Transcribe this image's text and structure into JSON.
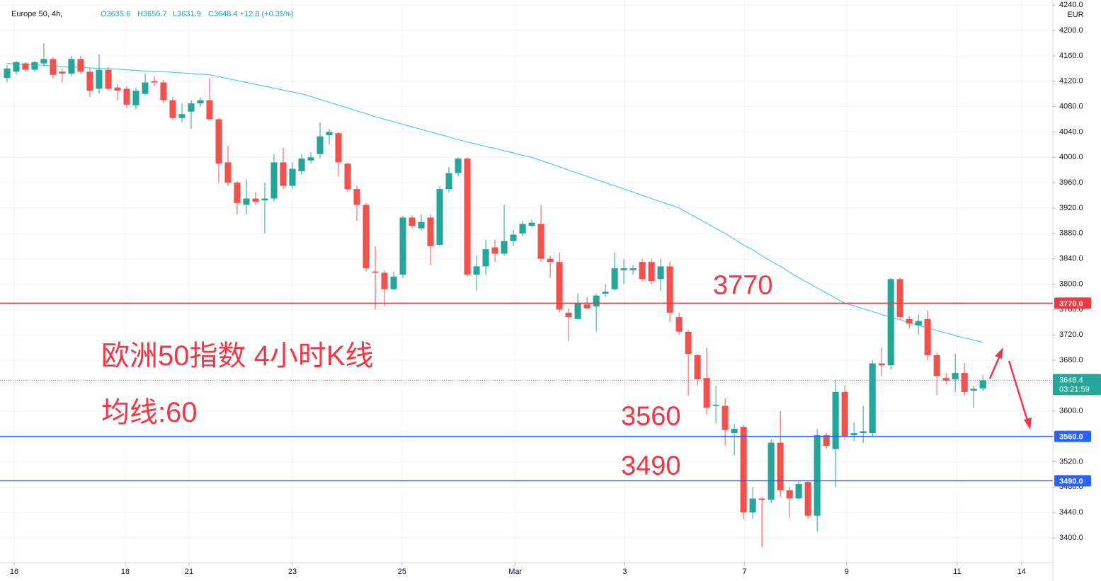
{
  "chart_data": {
    "type": "candlestick",
    "header": {
      "symbol": "Europe 50, 4h,",
      "ohlc": [
        "O3635.6",
        "H3656.7",
        "L3631.9",
        "C3648.4 +12.8 (+0.35%)"
      ]
    },
    "currency": "EUR",
    "annotations": {
      "title": "欧洲50指数 4小时K线",
      "ma_label": "均线:60"
    },
    "up_color": "#26a69a",
    "down_color": "#ef5350",
    "ma_color": "#4dd0e1",
    "open": [
      4125,
      4135,
      4148,
      4138,
      4148,
      4155,
      4135,
      4132,
      4155,
      4135,
      4108,
      4138,
      4110,
      4108,
      4082,
      4100,
      4120,
      4118,
      4090,
      4062,
      4072,
      4085,
      4090,
      4060,
      3992,
      3960,
      3925,
      3935,
      3932,
      3935,
      3992,
      3955,
      3978,
      3995,
      4005,
      4035,
      4038,
      3990,
      3950,
      3925,
      3820,
      3818,
      3792,
      3815,
      3905,
      3888,
      3905,
      3862,
      3950,
      3975,
      3998,
      3815,
      3828,
      3858,
      3848,
      3868,
      3880,
      3892,
      3895,
      3840,
      3835,
      3755,
      3745,
      3768,
      3765,
      3785,
      3792,
      3822,
      3822,
      3835,
      3835,
      3808,
      3828,
      3748,
      3725,
      3688,
      3652,
      3608,
      3608,
      3565,
      3575,
      3440,
      3462,
      3460,
      3550,
      3475,
      3462,
      3488,
      3435,
      3562,
      3540,
      3630,
      3562,
      3565,
      3565,
      3675,
      3672,
      3808,
      3745,
      3735,
      3745,
      3688,
      3652,
      3650,
      3660,
      3632,
      3635.6
    ],
    "high": [
      4145,
      4152,
      4150,
      4152,
      4180,
      4158,
      4140,
      4160,
      4160,
      4140,
      4162,
      4142,
      4115,
      4112,
      4110,
      4132,
      4128,
      4122,
      4095,
      4085,
      4090,
      4095,
      4125,
      4062,
      4018,
      3962,
      3965,
      3945,
      3960,
      4005,
      4015,
      3992,
      4005,
      4008,
      4055,
      4045,
      4040,
      3992,
      3955,
      3928,
      3860,
      3822,
      3820,
      3908,
      3908,
      3910,
      3910,
      3955,
      3985,
      4000,
      4000,
      3845,
      3870,
      3870,
      3925,
      3885,
      3900,
      3902,
      3925,
      3845,
      3850,
      3762,
      3785,
      3780,
      3785,
      3800,
      3850,
      3840,
      3830,
      3840,
      3840,
      3840,
      3835,
      3755,
      3728,
      3690,
      3700,
      3640,
      3620,
      3580,
      3578,
      3480,
      3465,
      3555,
      3600,
      3480,
      3490,
      3490,
      3572,
      3565,
      3650,
      3640,
      3582,
      3608,
      3680,
      3700,
      3810,
      3810,
      3750,
      3752,
      3758,
      3692,
      3660,
      3690,
      3675,
      3640,
      3656.7
    ],
    "low": [
      4118,
      4130,
      4135,
      4135,
      4143,
      4125,
      4118,
      4128,
      4132,
      4095,
      4100,
      4105,
      4090,
      4078,
      4075,
      4098,
      4112,
      4085,
      4058,
      4055,
      4045,
      4080,
      4058,
      3960,
      3955,
      3910,
      3910,
      3925,
      3880,
      3930,
      3950,
      3950,
      3972,
      3990,
      3998,
      4020,
      3970,
      3945,
      3900,
      3820,
      3760,
      3765,
      3790,
      3810,
      3888,
      3885,
      3830,
      3860,
      3945,
      3970,
      3812,
      3790,
      3815,
      3835,
      3845,
      3860,
      3875,
      3890,
      3835,
      3810,
      3755,
      3710,
      3745,
      3760,
      3725,
      3780,
      3790,
      3800,
      3815,
      3805,
      3800,
      3790,
      3740,
      3720,
      3625,
      3640,
      3595,
      3580,
      3545,
      3530,
      3430,
      3430,
      3385,
      3455,
      3465,
      3432,
      3460,
      3430,
      3410,
      3540,
      3480,
      3555,
      3552,
      3550,
      3560,
      3655,
      3665,
      3745,
      3730,
      3720,
      3680,
      3625,
      3642,
      3630,
      3625,
      3605,
      3631.9
    ],
    "close": [
      4140,
      4150,
      4138,
      4150,
      4155,
      4130,
      4132,
      4155,
      4135,
      4105,
      4138,
      4108,
      4105,
      4083,
      4105,
      4118,
      4118,
      4090,
      4062,
      4068,
      4085,
      4090,
      4060,
      3990,
      3960,
      3928,
      3935,
      3930,
      3935,
      3992,
      3955,
      3982,
      3998,
      4000,
      4033,
      4040,
      3992,
      3950,
      3925,
      3825,
      3818,
      3792,
      3812,
      3905,
      3892,
      3898,
      3860,
      3950,
      3975,
      3998,
      3815,
      3828,
      3855,
      3848,
      3868,
      3878,
      3895,
      3897,
      3840,
      3835,
      3760,
      3748,
      3770,
      3762,
      3782,
      3788,
      3825,
      3825,
      3825,
      3808,
      3805,
      3828,
      3755,
      3725,
      3690,
      3650,
      3605,
      3610,
      3570,
      3572,
      3440,
      3462,
      3460,
      3550,
      3475,
      3462,
      3485,
      3435,
      3562,
      3545,
      3630,
      3560,
      3565,
      3568,
      3675,
      3672,
      3808,
      3748,
      3738,
      3742,
      3688,
      3655,
      3648,
      3660,
      3630,
      3635,
      3648.4
    ],
    "ma_values": [
      4148,
      4147,
      4146,
      4146,
      4145,
      4144,
      4143,
      4142,
      4142,
      4141,
      4140,
      4140,
      4139,
      4138,
      4137,
      4136,
      4135,
      4135,
      4134,
      4133,
      4132,
      4131,
      4130,
      4127,
      4124,
      4121,
      4118,
      4115,
      4112,
      4109,
      4106,
      4103,
      4100,
      4096,
      4091,
      4087,
      4082,
      4078,
      4073,
      4069,
      4064,
      4060,
      4056,
      4052,
      4048,
      4044,
      4040,
      4036,
      4032,
      4028,
      4024,
      4021,
      4017,
      4014,
      4010,
      4007,
      4003,
      4000,
      3995,
      3990,
      3985,
      3980,
      3975,
      3970,
      3965,
      3960,
      3955,
      3950,
      3945,
      3940,
      3935,
      3930,
      3925,
      3920,
      3912,
      3904,
      3896,
      3888,
      3880,
      3871,
      3862,
      3854,
      3845,
      3836,
      3828,
      3819,
      3810,
      3802,
      3794,
      3786,
      3778,
      3770,
      3766,
      3761,
      3757,
      3752,
      3748,
      3744,
      3739,
      3735,
      3731,
      3727,
      3723,
      3719,
      3715,
      3712,
      3708
    ],
    "xlim": [
      -0.15,
      113.6
    ],
    "xticks": [
      {
        "value": 0.77,
        "label": "16"
      },
      {
        "value": 12.85,
        "label": "18"
      },
      {
        "value": 19.77,
        "label": "21"
      },
      {
        "value": 31,
        "label": "23"
      },
      {
        "value": 42.9,
        "label": "25"
      },
      {
        "value": 55.2,
        "label": "Mar"
      },
      {
        "value": 67.1,
        "label": "3"
      },
      {
        "value": 80.1,
        "label": "7"
      },
      {
        "value": 91.2,
        "label": "9"
      },
      {
        "value": 103.2,
        "label": "11"
      },
      {
        "value": 110.2,
        "label": "14"
      }
    ],
    "ylim": [
      3361,
      4248
    ],
    "yticks": [
      {
        "value": 3400,
        "label": "3400.0"
      },
      {
        "value": 3440,
        "label": "3440.0"
      },
      {
        "value": 3480,
        "label": "3480.0"
      },
      {
        "value": 3520,
        "label": "3520.0"
      },
      {
        "value": 3560,
        "label": "3560.0"
      },
      {
        "value": 3600,
        "label": "3600.0"
      },
      {
        "value": 3640,
        "label": "3640.0"
      },
      {
        "value": 3680,
        "label": "3680.0"
      },
      {
        "value": 3720,
        "label": "3720.0"
      },
      {
        "value": 3760,
        "label": "3760.0"
      },
      {
        "value": 3800,
        "label": "3800.0"
      },
      {
        "value": 3840,
        "label": "3840.0"
      },
      {
        "value": 3880,
        "label": "3880.0"
      },
      {
        "value": 3920,
        "label": "3920.0"
      },
      {
        "value": 3960,
        "label": "3960.0"
      },
      {
        "value": 4000,
        "label": "4000.0"
      },
      {
        "value": 4040,
        "label": "4040.0"
      },
      {
        "value": 4080,
        "label": "4080.0"
      },
      {
        "value": 4120,
        "label": "4120.0"
      },
      {
        "value": 4160,
        "label": "4160.0"
      },
      {
        "value": 4200,
        "label": "4200.0"
      },
      {
        "value": 4240,
        "label": "4240.0"
      }
    ],
    "grid": true,
    "hlines": [
      {
        "value": 3770,
        "color": "#f23645",
        "label": "3770.0",
        "text": "3770"
      },
      {
        "value": 3560,
        "color": "#2962ff",
        "label": "3560.0",
        "text": "3560"
      },
      {
        "value": 3490,
        "color": "#2962ff",
        "label": "3490.0",
        "text": "3490"
      }
    ],
    "last_price": {
      "value": 3648.4,
      "label": "3648.4",
      "countdown": "03:21:59"
    }
  }
}
